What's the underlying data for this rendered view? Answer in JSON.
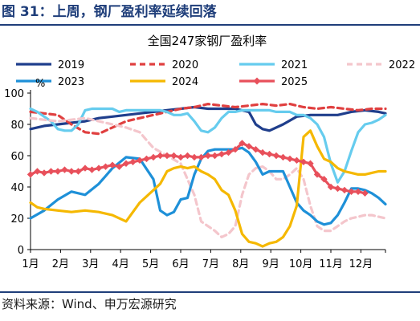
{
  "figure_title": "图 31：上周，钢厂盈利率延续回落",
  "source": "资料来源：Wind、申万宏源研究",
  "chart_data": {
    "type": "line",
    "title": "全国247家钢厂盈利率",
    "ylabel": "%",
    "xlabel": "",
    "ylim": [
      0,
      100
    ],
    "yticks": [
      0,
      20,
      40,
      60,
      80,
      100
    ],
    "xlim": [
      1,
      53
    ],
    "x_tick_labels": [
      "1月",
      "2月",
      "3月",
      "4月",
      "5月",
      "6月",
      "7月",
      "8月",
      "9月",
      "10月",
      "11月",
      "12月"
    ],
    "x_tick_weeks": [
      1,
      5.4,
      9.8,
      14.2,
      18.6,
      23,
      27.4,
      31.8,
      36.2,
      40.6,
      45,
      49.4
    ],
    "grid": false,
    "legend": "top",
    "series": [
      {
        "name": "2019",
        "color": "#1F3E8C",
        "style": "solid",
        "weeks": [
          1,
          3,
          5,
          7,
          9,
          11,
          13,
          15,
          17,
          19,
          21,
          23,
          25,
          27,
          29,
          31,
          33,
          34,
          35,
          36,
          38,
          40,
          42,
          44,
          46,
          48,
          50,
          52,
          53
        ],
        "values": [
          77,
          79,
          80,
          81,
          82,
          84,
          85,
          86,
          87,
          88,
          89,
          90,
          91,
          90,
          90,
          90,
          88,
          80,
          77,
          76,
          80,
          85,
          86,
          86,
          86,
          88,
          89,
          88,
          87
        ]
      },
      {
        "name": "2020",
        "color": "#E04040",
        "style": "dash",
        "weeks": [
          1,
          3,
          5,
          7,
          9,
          11,
          13,
          15,
          17,
          19,
          21,
          23,
          25,
          27,
          29,
          31,
          33,
          35,
          37,
          39,
          41,
          43,
          45,
          47,
          49,
          51,
          53
        ],
        "values": [
          88,
          87,
          86,
          80,
          75,
          74,
          78,
          82,
          84,
          86,
          88,
          90,
          91,
          93,
          92,
          91,
          92,
          93,
          92,
          93,
          91,
          90,
          91,
          90,
          89,
          90,
          90
        ]
      },
      {
        "name": "2021",
        "color": "#66CCEE",
        "style": "solid",
        "weeks": [
          1,
          2,
          3,
          4,
          5,
          6,
          7,
          8,
          9,
          10,
          11,
          12,
          13,
          14,
          15,
          16,
          17,
          18,
          19,
          20,
          21,
          22,
          23,
          24,
          25,
          26,
          27,
          28,
          29,
          30,
          31,
          32,
          33,
          34,
          35,
          36,
          37,
          38,
          39,
          40,
          41,
          42,
          43,
          44,
          45,
          46,
          47,
          48,
          49,
          50,
          51,
          52,
          53
        ],
        "values": [
          90,
          88,
          85,
          82,
          77,
          76,
          76,
          80,
          89,
          90,
          90,
          90,
          90,
          88,
          89,
          89,
          89,
          89,
          89,
          89,
          88,
          86,
          86,
          87,
          82,
          76,
          75,
          78,
          84,
          88,
          88,
          89,
          89,
          89,
          89,
          89,
          88,
          88,
          88,
          86,
          86,
          84,
          80,
          72,
          55,
          43,
          50,
          63,
          75,
          80,
          81,
          83,
          86
        ]
      },
      {
        "name": "2022",
        "color": "#F4C6CC",
        "style": "dash",
        "weeks": [
          1,
          3,
          5,
          7,
          9,
          11,
          13,
          15,
          17,
          19,
          21,
          23,
          25,
          26,
          27,
          28,
          29,
          30,
          31,
          32,
          33,
          34,
          35,
          36,
          37,
          38,
          39,
          40,
          41,
          42,
          43,
          44,
          45,
          46,
          47,
          48,
          49,
          50,
          51,
          52,
          53
        ],
        "values": [
          84,
          83,
          82,
          83,
          84,
          82,
          80,
          78,
          75,
          65,
          60,
          55,
          35,
          18,
          15,
          12,
          8,
          10,
          15,
          35,
          48,
          52,
          53,
          50,
          45,
          45,
          48,
          52,
          45,
          28,
          15,
          12,
          12,
          15,
          18,
          20,
          21,
          22,
          22,
          21,
          20
        ]
      },
      {
        "name": "2023",
        "color": "#1E90D8",
        "style": "solid",
        "weeks": [
          1,
          3,
          5,
          7,
          9,
          11,
          13,
          15,
          17,
          19,
          20,
          21,
          22,
          23,
          24,
          25,
          26,
          27,
          28,
          29,
          30,
          31,
          32,
          33,
          34,
          35,
          36,
          37,
          38,
          39,
          40,
          41,
          42,
          43,
          44,
          45,
          46,
          47,
          48,
          49,
          50,
          51,
          52,
          53
        ],
        "values": [
          20,
          25,
          32,
          37,
          35,
          42,
          52,
          59,
          58,
          45,
          25,
          22,
          24,
          32,
          33,
          48,
          58,
          63,
          64,
          64,
          64,
          64,
          65,
          62,
          56,
          48,
          50,
          50,
          50,
          40,
          30,
          25,
          22,
          18,
          16,
          17,
          22,
          30,
          39,
          39,
          38,
          36,
          33,
          29
        ]
      },
      {
        "name": "2024",
        "color": "#F5B800",
        "style": "solid",
        "weeks": [
          1,
          2,
          3,
          5,
          7,
          9,
          11,
          13,
          15,
          17,
          19,
          20,
          21,
          22,
          23,
          24,
          25,
          26,
          27,
          28,
          29,
          30,
          31,
          32,
          33,
          34,
          35,
          36,
          37,
          38,
          39,
          40,
          41,
          42,
          43,
          44,
          45,
          46,
          47,
          48,
          49,
          50,
          51,
          52,
          53
        ],
        "values": [
          30,
          27,
          26,
          25,
          24,
          25,
          24,
          22,
          18,
          30,
          38,
          42,
          50,
          52,
          53,
          52,
          53,
          50,
          48,
          45,
          38,
          35,
          25,
          10,
          5,
          4,
          2,
          4,
          5,
          8,
          15,
          28,
          72,
          76,
          66,
          58,
          56,
          52,
          50,
          49,
          48,
          48,
          49,
          50,
          50
        ]
      },
      {
        "name": "2025",
        "color": "#E8505B",
        "style": "solid",
        "marker": "diamond",
        "weeks": [
          1,
          2,
          3,
          4,
          5,
          6,
          7,
          8,
          9,
          10,
          11,
          12,
          13,
          14,
          15,
          16,
          17,
          18,
          19,
          20,
          21,
          22,
          23,
          24,
          25,
          26,
          27,
          28,
          29,
          30,
          31,
          32,
          33,
          34,
          35,
          36,
          37,
          38,
          39,
          40,
          41,
          42,
          43,
          44,
          45,
          46,
          47,
          48,
          49,
          50
        ],
        "values": [
          48,
          50,
          49,
          50,
          50,
          51,
          50,
          50,
          52,
          51,
          52,
          53,
          54,
          53,
          55,
          56,
          57,
          58,
          59,
          60,
          60,
          60,
          59,
          60,
          59,
          59,
          60,
          60,
          61,
          62,
          64,
          68,
          66,
          64,
          62,
          61,
          60,
          59,
          58,
          57,
          56,
          55,
          48,
          45,
          40,
          39,
          38,
          37,
          37,
          36
        ]
      }
    ]
  }
}
